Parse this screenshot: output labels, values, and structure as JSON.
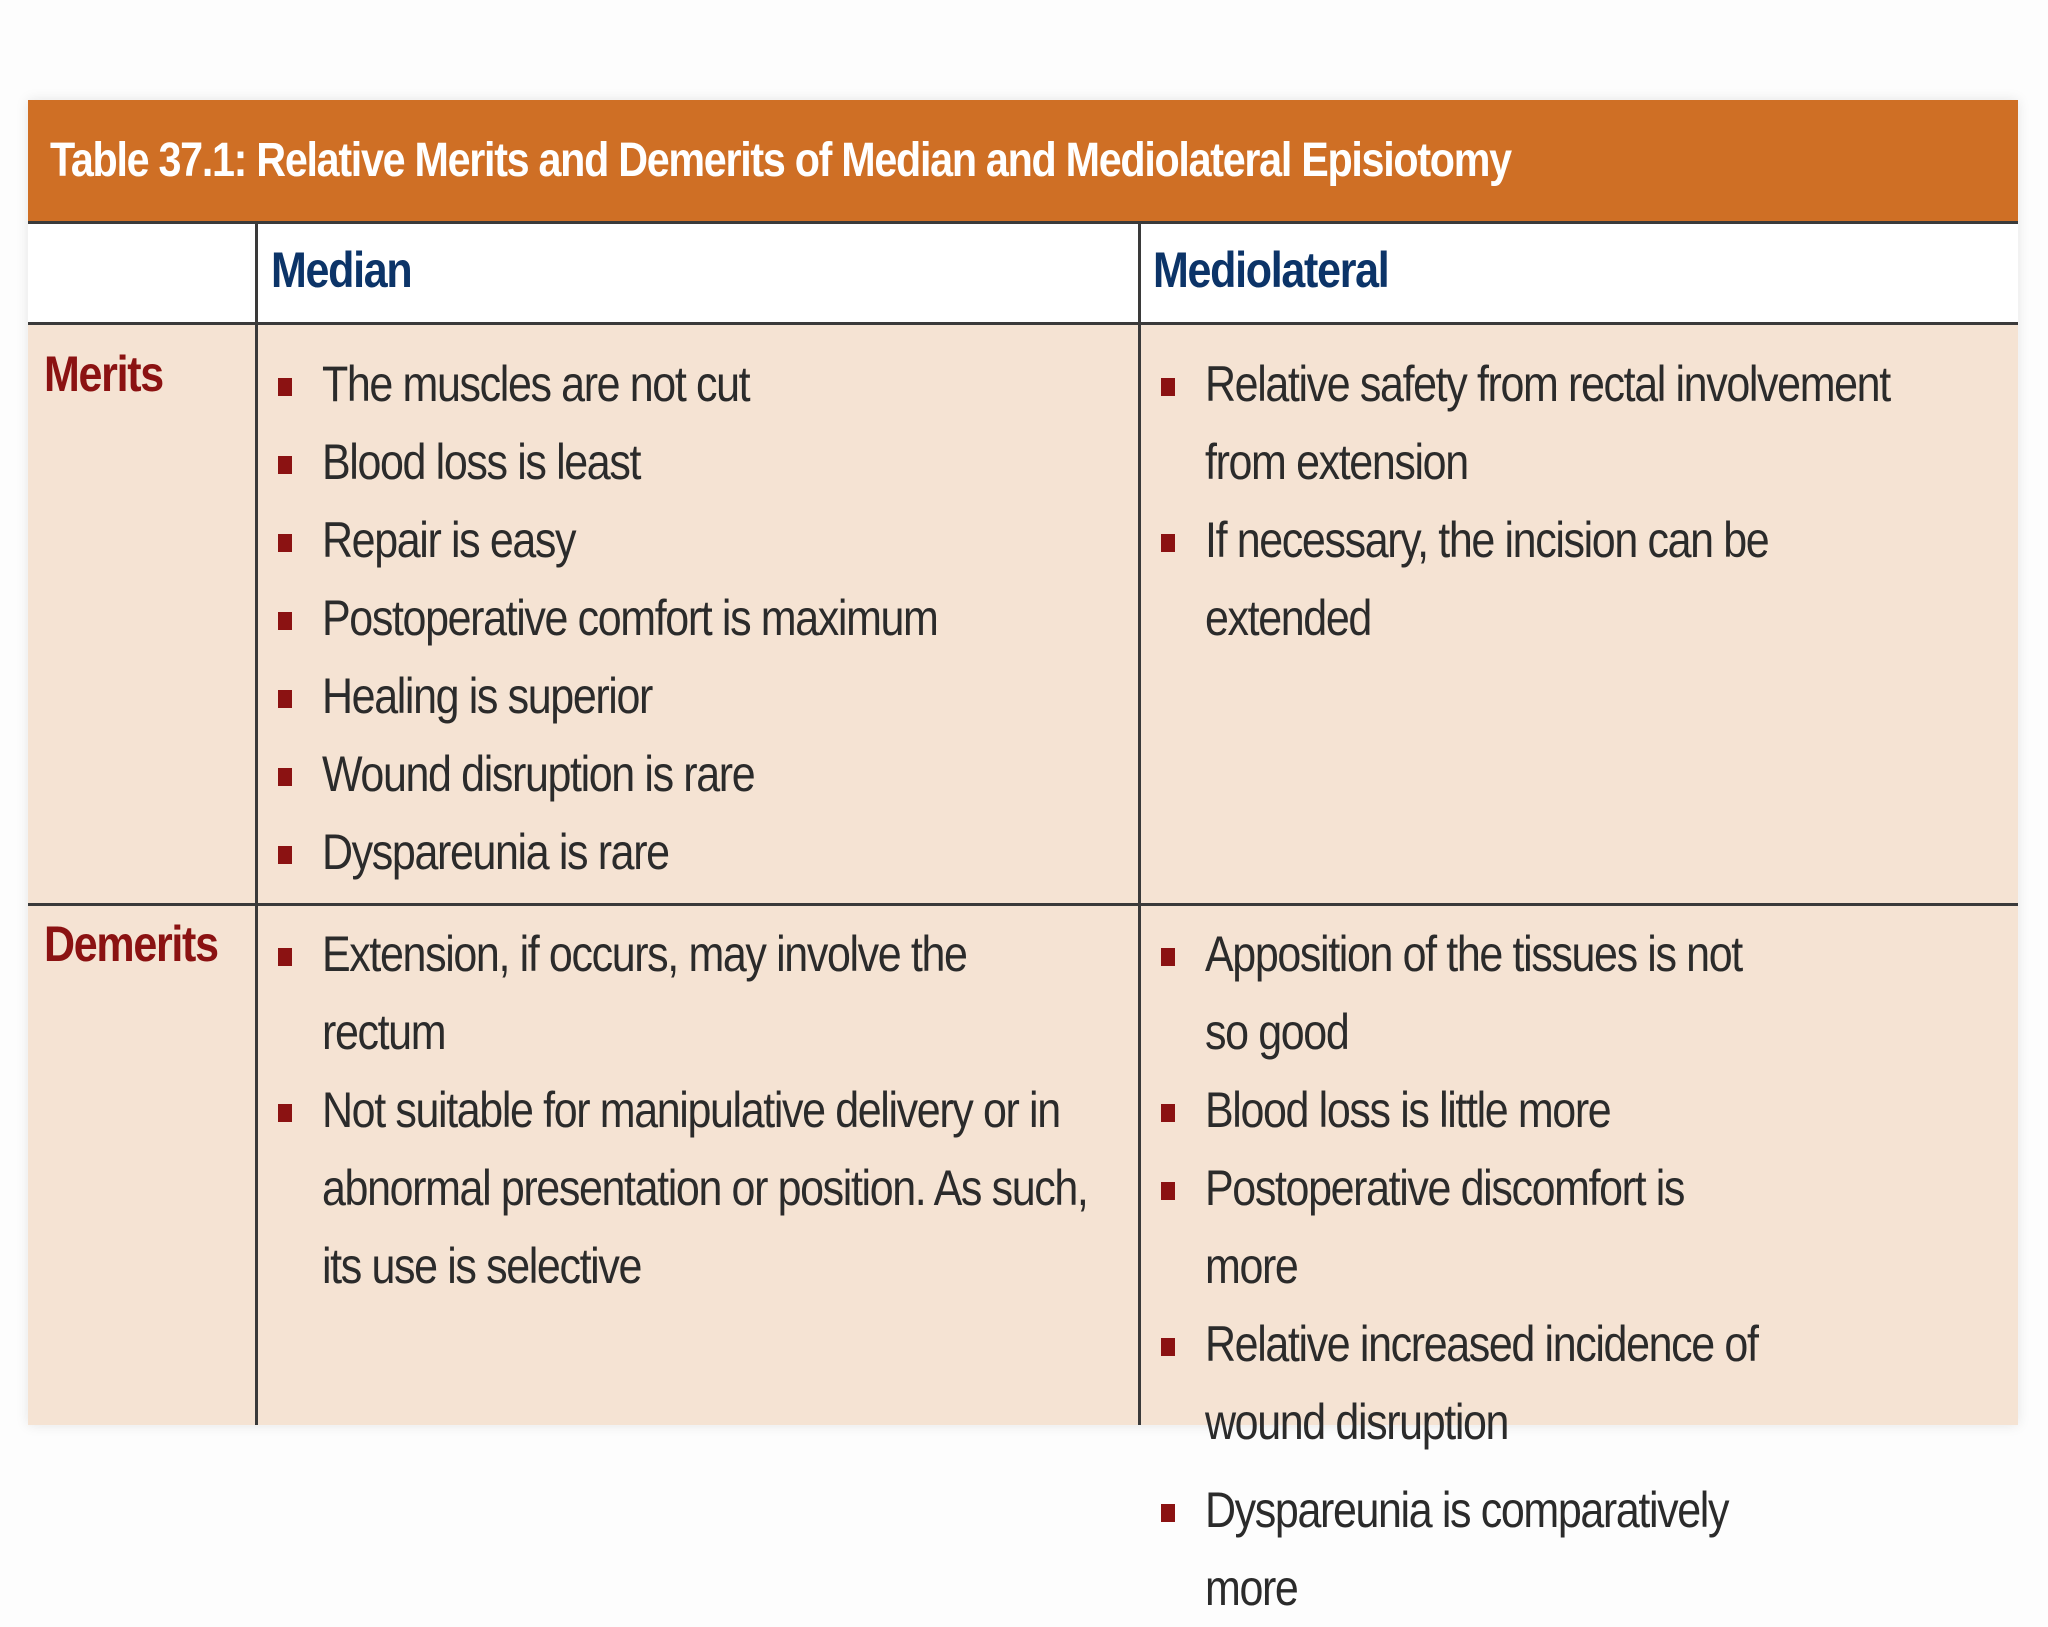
{
  "table": {
    "title": "Table 37.1: Relative Merits and Demerits of Median and Mediolateral Episiotomy",
    "columns": [
      "",
      "Median",
      "Mediolateral"
    ],
    "rows": [
      {
        "label": "Merits",
        "median": [
          "The muscles are not cut",
          "Blood loss is least",
          "Repair is easy",
          "Postoperative comfort is maximum",
          "Healing is superior",
          "Wound disruption is rare",
          "Dyspareunia is rare"
        ],
        "mediolateral": [
          "Relative safety from rectal involvement from extension",
          "If necessary, the incision can be extended"
        ]
      },
      {
        "label": "Demerits",
        "median": [
          "Extension, if occurs, may involve the rectum",
          "Not suitable for manipulative delivery or in abnormal presentation or position. As such, its use is selective"
        ],
        "mediolateral": [
          "Apposition of the tissues is not so good",
          "Blood loss is little more",
          "Postoperative discomfort is more",
          "Relative increased incidence of wound disruption",
          "Dyspareunia is comparatively more"
        ]
      }
    ]
  },
  "colors": {
    "title_bar": "#cf6f25",
    "body_bg": "#f5e3d3",
    "column_header_text": "#0c3468",
    "row_header_text": "#8b1212",
    "bullet": "#8b1212"
  }
}
